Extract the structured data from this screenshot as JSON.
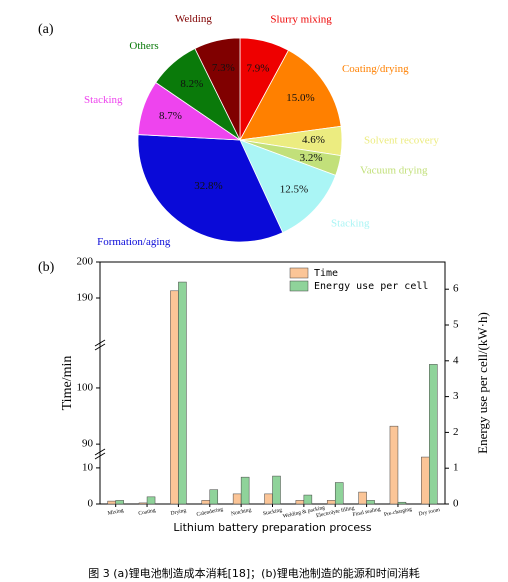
{
  "chart_data": [
    {
      "type": "pie",
      "panel_label": "(a)",
      "categories": [
        "Slurry mixing",
        "Coating/drying",
        "Solvent recovery",
        "Vacuum drying",
        "Stacking",
        "Formation/aging",
        "Stacking",
        "Others",
        "Welding"
      ],
      "values": [
        7.9,
        15.0,
        4.6,
        3.2,
        12.5,
        32.8,
        8.7,
        8.2,
        7.3
      ],
      "value_labels": [
        "7.9%",
        "15.0%",
        "4.6%",
        "3.2%",
        "12.5%",
        "32.8%",
        "8.7%",
        "8.2%",
        "7.3%"
      ],
      "colors": [
        "#ee0000",
        "#ff8000",
        "#ecec80",
        "#c2e07a",
        "#aaf5f5",
        "#0a0ad8",
        "#ee44ee",
        "#0a7a0a",
        "#800000"
      ]
    },
    {
      "type": "bar",
      "panel_label": "(b)",
      "x_label": "Lithium battery preparation process",
      "y_label": "Time/min",
      "y2_label": "Energy use per cell/(kW·h)",
      "categories": [
        "Mixing",
        "Coating",
        "Drying",
        "Calendering",
        "Notching",
        "Stacking",
        "Welding & packing",
        "Electrolyte filling",
        "Final sealing",
        "Pre-charging",
        "Dry room"
      ],
      "series": [
        {
          "name": "Time",
          "color": "#fbc597",
          "values": [
            0.8,
            0.3,
            192,
            1.0,
            2.8,
            2.8,
            1.0,
            1.0,
            3.3,
            93.2,
            13
          ]
        },
        {
          "name": "Energy use per cell",
          "color": "#8fd39a",
          "axis": "y2",
          "values": [
            0.1,
            0.2,
            6.2,
            0.4,
            0.75,
            0.78,
            0.25,
            0.6,
            0.1,
            0.05,
            3.9
          ]
        }
      ],
      "y_segments": [
        [
          0,
          14.4
        ],
        [
          88.6,
          108
        ],
        [
          177.5,
          200
        ]
      ],
      "yticks": [
        0,
        10,
        90,
        100,
        190,
        200
      ],
      "y2lim": [
        0,
        6.76
      ],
      "y2ticks": [
        0,
        1,
        2,
        3,
        4,
        5,
        6
      ],
      "legend": "upper right"
    }
  ],
  "caption": "图 3 (a)锂电池制造成本消耗[18]；(b)锂电池制造的能源和时间消耗"
}
